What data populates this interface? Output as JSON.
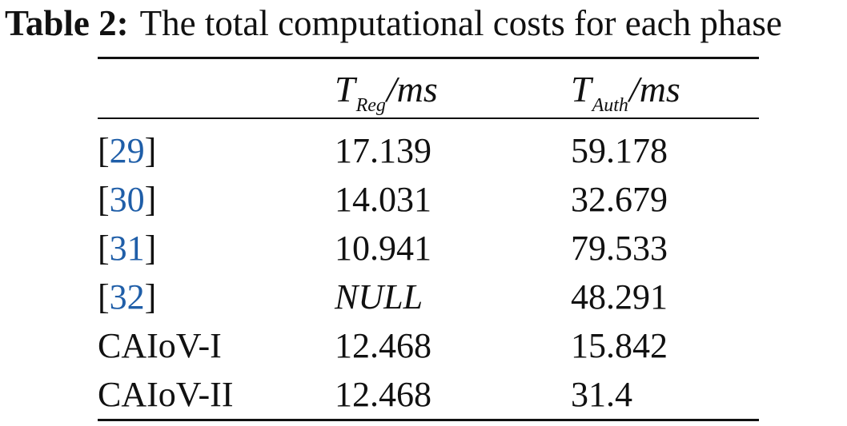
{
  "caption": {
    "label": "Table 2:",
    "text": "The total computational costs for each phase"
  },
  "header": {
    "col0": "",
    "col1": {
      "symbol": "T",
      "subscript": "Reg",
      "unit": "/ms"
    },
    "col2": {
      "symbol": "T",
      "subscript": "Auth",
      "unit": "/ms"
    }
  },
  "rows": [
    {
      "scheme": {
        "open": "[",
        "ref": "29",
        "close": "]"
      },
      "t_reg": "17.139",
      "t_auth": "59.178"
    },
    {
      "scheme": {
        "open": "[",
        "ref": "30",
        "close": "]"
      },
      "t_reg": "14.031",
      "t_auth": "32.679"
    },
    {
      "scheme": {
        "open": "[",
        "ref": "31",
        "close": "]"
      },
      "t_reg": "10.941",
      "t_auth": "79.533"
    },
    {
      "scheme": {
        "open": "[",
        "ref": "32",
        "close": "]"
      },
      "t_reg": "NULL",
      "t_auth": "48.291"
    },
    {
      "scheme_text": "CAIoV-I",
      "t_reg": "12.468",
      "t_auth": "15.842"
    },
    {
      "scheme_text": "CAIoV-II",
      "t_reg": "12.468",
      "t_auth": "31.4"
    }
  ],
  "colors": {
    "text": "#111111",
    "citation_link": "#1f5ea8"
  }
}
